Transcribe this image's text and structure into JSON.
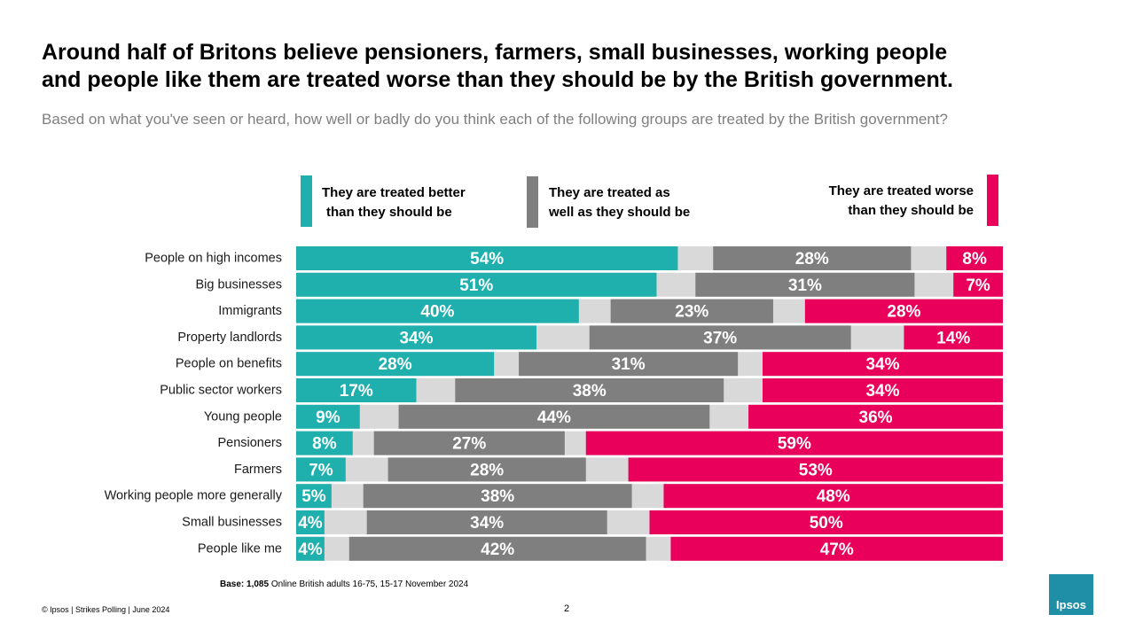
{
  "title_line1": "Around half of Britons believe pensioners, farmers, small businesses, working people",
  "title_line2": "and people like them are treated worse than they should be by the British government.",
  "subtitle": "Based on what you've seen or heard, how well or badly do you think each of the following groups are treated by the British government?",
  "legend": {
    "better_line1": "They are treated better",
    "better_line2": "than they should be",
    "as_well_line1": "They are treated as",
    "as_well_line2": "well as they should be",
    "worse_line1": "They are treated worse",
    "worse_line2": "than they should be"
  },
  "colors": {
    "better": "#1fb0ad",
    "as_well": "#7f7f7f",
    "worse": "#e8005b",
    "gap": "#d9d9d9"
  },
  "chart_data": {
    "type": "bar",
    "orientation": "horizontal",
    "stacked": true,
    "categories": [
      "People on high incomes",
      "Big businesses",
      "Immigrants",
      "Property landlords",
      "People on benefits",
      "Public sector workers",
      "Young people",
      "Pensioners",
      "Farmers",
      "Working people more generally",
      "Small businesses",
      "People like me"
    ],
    "series": [
      {
        "name": "They are treated better than they should be",
        "values": [
          54,
          51,
          40,
          34,
          28,
          17,
          9,
          8,
          7,
          5,
          4,
          4
        ]
      },
      {
        "name": "They are treated as well as they should be",
        "values": [
          28,
          31,
          23,
          37,
          31,
          38,
          44,
          27,
          28,
          38,
          34,
          42
        ]
      },
      {
        "name": "They are treated worse than they should be",
        "values": [
          8,
          7,
          28,
          14,
          34,
          34,
          36,
          59,
          53,
          48,
          50,
          47
        ]
      }
    ],
    "unit": "%",
    "xlim": [
      0,
      100
    ],
    "legend_position": "top"
  },
  "base_label": "Base: 1,085",
  "base_text": " Online British adults 16-75, 15-17 November 2024",
  "footer": "© Ipsos | Strikes Polling | June 2024",
  "page_number": "2",
  "logo_text": "Ipsos"
}
